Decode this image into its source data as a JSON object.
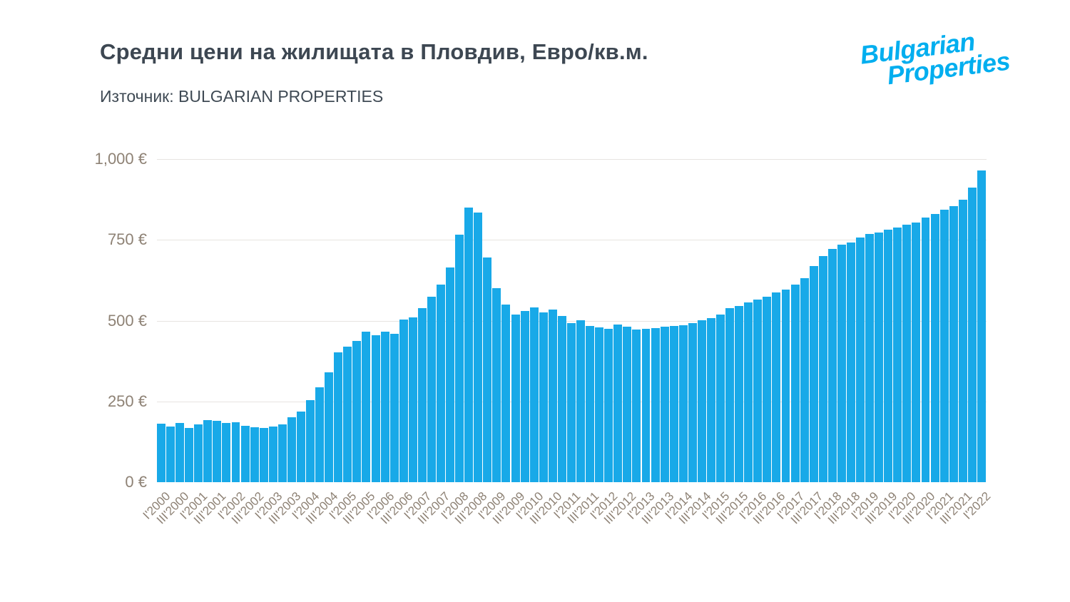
{
  "header": {
    "title": "Средни цени на жилищата в Пловдив, Евро/кв.м.",
    "source": "Източник: BULGARIAN PROPERTIES",
    "logo": {
      "line1": "Bulgarian",
      "line2": "Properties",
      "color": "#00AEEF"
    }
  },
  "chart_data": {
    "type": "bar",
    "title": "Средни цени на жилищата в Пловдив, Евро/кв.м.",
    "source": "Източник: BULGARIAN PROPERTIES",
    "unit": "EUR per sq.m",
    "bar_color": "#18A9E8",
    "grid": true,
    "legend": "none",
    "ylim": [
      0,
      1000
    ],
    "y_ticks": [
      {
        "value": 0,
        "label": "0 €"
      },
      {
        "value": 250,
        "label": "250 €"
      },
      {
        "value": 500,
        "label": "500 €"
      },
      {
        "value": 750,
        "label": "750 €"
      },
      {
        "value": 1000,
        "label": "1,000 €"
      }
    ],
    "x_tick_rule": "labels shown only for quarters I and III",
    "categories": [
      "I'2000",
      "II'2000",
      "III'2000",
      "IV'2000",
      "I'2001",
      "II'2001",
      "III'2001",
      "IV'2001",
      "I'2002",
      "II'2002",
      "III'2002",
      "IV'2002",
      "I'2003",
      "II'2003",
      "III'2003",
      "IV'2003",
      "I'2004",
      "II'2004",
      "III'2004",
      "IV'2004",
      "I'2005",
      "II'2005",
      "III'2005",
      "IV'2005",
      "I'2006",
      "II'2006",
      "III'2006",
      "IV'2006",
      "I'2007",
      "II'2007",
      "III'2007",
      "IV'2007",
      "I'2008",
      "II'2008",
      "III'2008",
      "IV'2008",
      "I'2009",
      "II'2009",
      "III'2009",
      "IV'2009",
      "I'2010",
      "II'2010",
      "III'2010",
      "IV'2010",
      "I'2011",
      "II'2011",
      "III'2011",
      "IV'2011",
      "I'2012",
      "II'2012",
      "III'2012",
      "IV'2012",
      "I'2013",
      "II'2013",
      "III'2013",
      "IV'2013",
      "I'2014",
      "II'2014",
      "III'2014",
      "IV'2014",
      "I'2015",
      "II'2015",
      "III'2015",
      "IV'2015",
      "I'2016",
      "II'2016",
      "III'2016",
      "IV'2016",
      "I'2017",
      "II'2017",
      "III'2017",
      "IV'2017",
      "I'2018",
      "II'2018",
      "III'2018",
      "IV'2018",
      "I'2019",
      "II'2019",
      "III'2019",
      "IV'2019",
      "I'2020",
      "II'2020",
      "III'2020",
      "IV'2020",
      "I'2021",
      "II'2021",
      "III'2021",
      "IV'2021",
      "I'2022"
    ],
    "values": [
      181,
      172,
      183,
      168,
      179,
      192,
      189,
      183,
      186,
      175,
      169,
      168,
      172,
      179,
      200,
      218,
      253,
      293,
      340,
      401,
      419,
      437,
      466,
      455,
      466,
      459,
      503,
      510,
      539,
      575,
      612,
      665,
      765,
      850,
      835,
      695,
      600,
      549,
      519,
      530,
      541,
      525,
      534,
      515,
      493,
      502,
      484,
      478,
      475,
      488,
      481,
      472,
      475,
      477,
      481,
      483,
      486,
      493,
      502,
      508,
      519,
      538,
      545,
      556,
      566,
      574,
      588,
      595,
      612,
      632,
      670,
      700,
      722,
      735,
      742,
      758,
      768,
      773,
      782,
      789,
      796,
      804,
      818,
      831,
      843,
      855,
      875,
      911,
      964
    ]
  }
}
